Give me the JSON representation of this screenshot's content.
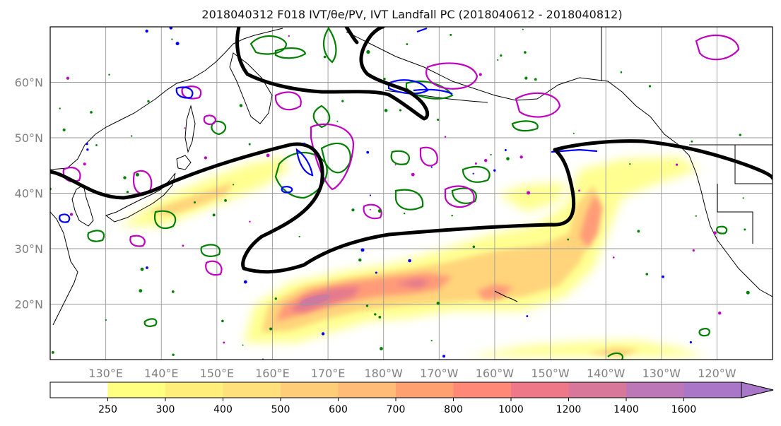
{
  "chart_data": {
    "type": "heatmap",
    "title": "2018040312 F018 IVT/θe/PV, IVT Landfall PC (2018040612 - 2018040812)",
    "map": {
      "lon_range": [
        120,
        250
      ],
      "lat_range": [
        10,
        70
      ],
      "lon_ticks": [
        130,
        140,
        150,
        160,
        170,
        180,
        190,
        200,
        210,
        220,
        230,
        240
      ],
      "lon_tick_labels": [
        "130°E",
        "140°E",
        "150°E",
        "160°E",
        "170°E",
        "180°W",
        "170°W",
        "160°W",
        "150°W",
        "140°W",
        "130°W",
        "120°W"
      ],
      "lat_ticks": [
        20,
        30,
        40,
        50,
        60
      ],
      "lat_tick_labels": [
        "20°N",
        "30°N",
        "40°N",
        "50°N",
        "60°N"
      ],
      "grid": true
    },
    "colorbar": {
      "levels": [
        250,
        300,
        400,
        500,
        600,
        700,
        800,
        1000,
        1200,
        1400,
        1600
      ],
      "tick_labels": [
        "250",
        "300",
        "400",
        "500",
        "600",
        "700",
        "800",
        "1000",
        "1200",
        "1400",
        "1600"
      ],
      "colors": [
        "#ffff80",
        "#ffef7a",
        "#ffe07a",
        "#ffcc77",
        "#ffbb77",
        "#ffa070",
        "#ff8877",
        "#ee7788",
        "#d8779a",
        "#bb77b8",
        "#aa77c8"
      ],
      "extend": "max"
    },
    "contour_colors": {
      "landfall_pc": "#000000",
      "theta_e": "#008000",
      "pv_magenta": "#c000c0",
      "pv_blue": "#0000ff",
      "coastline": "#000000"
    },
    "ivt_field": [
      {
        "lon": 168,
        "lat": 20,
        "value": 1250
      },
      {
        "lon": 185,
        "lat": 22,
        "value": 1000
      },
      {
        "lon": 196,
        "lat": 22,
        "value": 700
      },
      {
        "lon": 218,
        "lat": 30,
        "value": 800
      },
      {
        "lon": 220,
        "lat": 37,
        "value": 700
      },
      {
        "lon": 150,
        "lat": 40,
        "value": 400
      },
      {
        "lon": 205,
        "lat": 32,
        "value": 450
      },
      {
        "lon": 232,
        "lat": 12,
        "value": 400
      }
    ]
  }
}
